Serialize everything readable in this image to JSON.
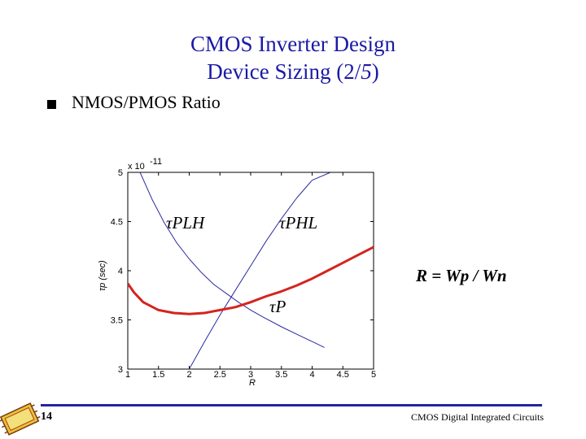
{
  "slide": {
    "title_line1": "CMOS Inverter Design",
    "title_line2_prefix": "Device Sizing (2/",
    "title_line2_em": "5",
    "title_line2_suffix": ")",
    "bullet": "NMOS/PMOS Ratio",
    "page_number": "14",
    "footer": "CMOS Digital Integrated Circuits"
  },
  "chart_data": {
    "type": "line",
    "ylabel": "τp (sec)",
    "xlabel": "R",
    "xlim": [
      1,
      5
    ],
    "ylim": [
      3,
      5
    ],
    "y_exponent": "x 10",
    "y_exponent_power": "-11",
    "xticks": [
      "1",
      "1.5",
      "2",
      "2.5",
      "3",
      "3.5",
      "4",
      "4.5",
      "5"
    ],
    "yticks": [
      "3",
      "3.5",
      "4",
      "4.5",
      "5"
    ],
    "series": [
      {
        "name": "τPLH",
        "color": "#2a2aa0",
        "x": [
          1.2,
          1.4,
          1.6,
          1.8,
          2.0,
          2.2,
          2.4,
          2.6,
          2.8,
          3.0,
          3.2,
          3.5,
          3.8,
          4.0,
          4.2
        ],
        "y": [
          5.0,
          4.72,
          4.48,
          4.28,
          4.12,
          3.98,
          3.86,
          3.77,
          3.68,
          3.6,
          3.53,
          3.43,
          3.34,
          3.28,
          3.22
        ]
      },
      {
        "name": "τPHL",
        "color": "#2a2aa0",
        "x": [
          2.0,
          2.25,
          2.5,
          2.75,
          3.0,
          3.25,
          3.5,
          3.75,
          4.0,
          4.3
        ],
        "y": [
          3.0,
          3.28,
          3.55,
          3.8,
          4.05,
          4.3,
          4.53,
          4.74,
          4.92,
          5.0
        ]
      },
      {
        "name": "τP",
        "color": "#d4241f",
        "x": [
          1.0,
          1.1,
          1.25,
          1.5,
          1.75,
          2.0,
          2.25,
          2.5,
          2.75,
          3.0,
          3.25,
          3.5,
          3.75,
          4.0,
          4.25,
          4.5,
          4.75,
          5.0
        ],
        "y": [
          3.87,
          3.78,
          3.68,
          3.6,
          3.57,
          3.56,
          3.57,
          3.6,
          3.63,
          3.68,
          3.74,
          3.79,
          3.85,
          3.92,
          4.0,
          4.08,
          4.16,
          4.24
        ]
      }
    ],
    "annotations": {
      "plh": "τPLH",
      "phl": "τPHL",
      "p": "τP",
      "ratio": "R = Wp / Wn"
    }
  }
}
